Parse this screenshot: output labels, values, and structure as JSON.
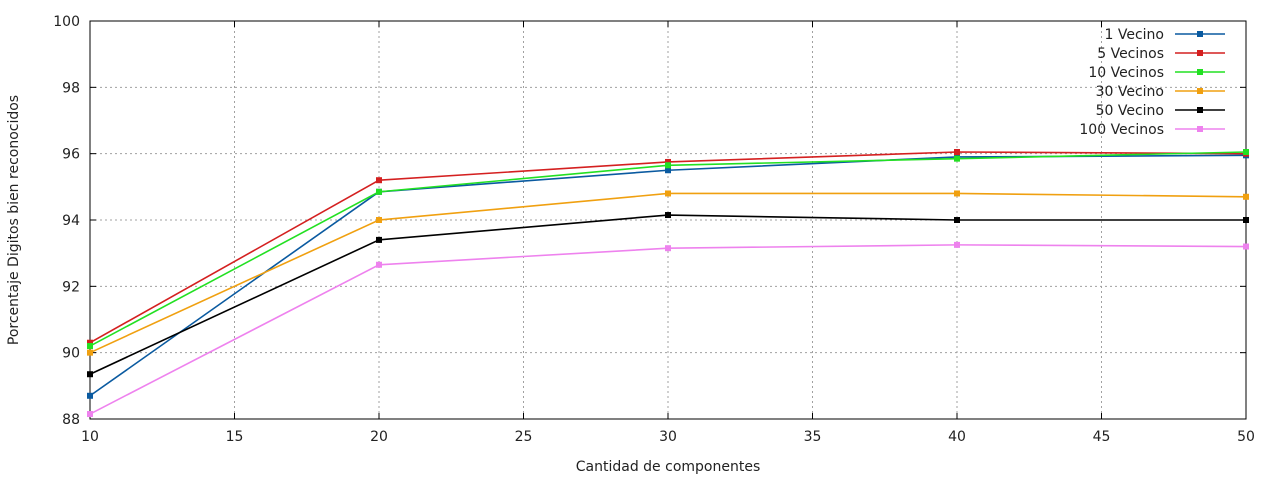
{
  "chart_data": {
    "type": "line",
    "xlabel": "Cantidad de componentes",
    "ylabel": "Porcentaje Digitos bien reconocidos",
    "xlim": [
      10,
      50
    ],
    "ylim": [
      88,
      100
    ],
    "xticks": [
      "10",
      "15",
      "20",
      "25",
      "30",
      "35",
      "40",
      "45",
      "50"
    ],
    "yticks": [
      "88",
      "90",
      "92",
      "94",
      "96",
      "98",
      "100"
    ],
    "grid": true,
    "legend_position": "top-right",
    "x": [
      10,
      20,
      30,
      40,
      50
    ],
    "series": [
      {
        "name": "1 Vecino",
        "color": "#0a5aa0",
        "values": [
          88.7,
          94.85,
          95.5,
          95.9,
          95.95
        ]
      },
      {
        "name": "5 Vecinos",
        "color": "#d42020",
        "values": [
          90.3,
          95.2,
          95.75,
          96.05,
          96.0
        ]
      },
      {
        "name": "10 Vecinos",
        "color": "#22e022",
        "values": [
          90.2,
          94.85,
          95.65,
          95.85,
          96.05
        ]
      },
      {
        "name": "30 Vecino",
        "color": "#f0a010",
        "values": [
          90.0,
          94.0,
          94.8,
          94.8,
          94.7
        ]
      },
      {
        "name": "50 Vecino",
        "color": "#000000",
        "values": [
          89.35,
          93.4,
          94.15,
          94.0,
          94.0
        ]
      },
      {
        "name": "100 Vecinos",
        "color": "#ee82ee",
        "values": [
          88.15,
          92.65,
          93.15,
          93.25,
          93.2
        ]
      }
    ]
  }
}
